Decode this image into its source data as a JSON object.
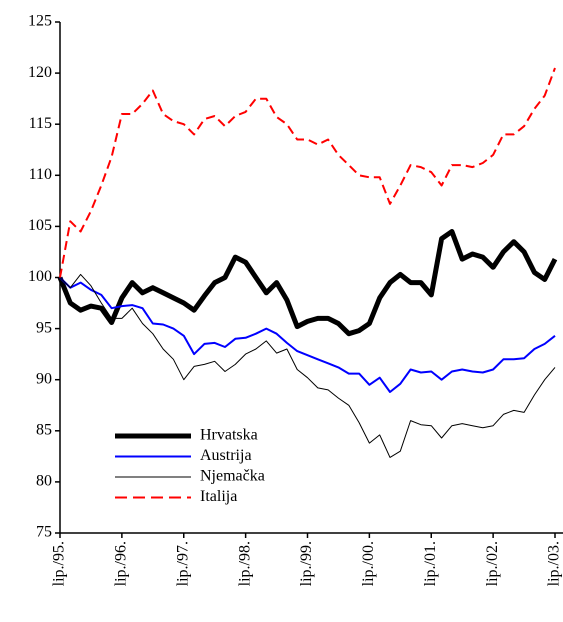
{
  "chart_data": {
    "type": "line",
    "categories": [
      "lip./95.",
      null,
      null,
      null,
      null,
      null,
      "lip./96.",
      null,
      null,
      null,
      null,
      null,
      "lip./97.",
      null,
      null,
      null,
      null,
      null,
      "lip./98.",
      null,
      null,
      null,
      null,
      null,
      "lip./99.",
      null,
      null,
      null,
      null,
      null,
      "lip./00.",
      null,
      null,
      null,
      null,
      null,
      "lip./01.",
      null,
      null,
      null,
      null,
      null,
      "lip./02.",
      null,
      null,
      null,
      null,
      null,
      "lip./03."
    ],
    "series": [
      {
        "name": "Hrvatska",
        "color": "#000000",
        "line_width": 5,
        "dashed": false,
        "values": [
          100,
          97.5,
          96.8,
          97.2,
          97,
          95.6,
          98,
          99.5,
          98.5,
          99,
          98.5,
          98,
          97.5,
          96.8,
          98.2,
          99.5,
          100,
          102,
          101.5,
          100,
          98.5,
          99.5,
          97.8,
          95.2,
          95.7,
          96,
          96,
          95.5,
          94.5,
          94.8,
          95.5,
          98,
          99.5,
          100.3,
          99.5,
          99.5,
          98.3,
          103.8,
          104.5,
          101.8,
          102.3,
          102,
          101,
          102.5,
          103.5,
          102.5,
          100.5,
          99.8,
          101.8
        ]
      },
      {
        "name": "Austrija",
        "color": "#0000ff",
        "line_width": 2,
        "dashed": false,
        "values": [
          100,
          99,
          99.5,
          98.8,
          98.3,
          97,
          97.2,
          97.3,
          97,
          95.5,
          95.4,
          95,
          94.3,
          92.5,
          93.5,
          93.6,
          93.2,
          94,
          94.1,
          94.5,
          95,
          94.5,
          93.6,
          92.8,
          92.4,
          92,
          91.6,
          91.2,
          90.6,
          90.6,
          89.5,
          90.2,
          88.8,
          89.6,
          91,
          90.7,
          90.8,
          90,
          90.8,
          91,
          90.8,
          90.7,
          91,
          92,
          92,
          92.1,
          93,
          93.5,
          94.3
        ]
      },
      {
        "name": "Njemačka",
        "color": "#000000",
        "line_width": 1,
        "dashed": false,
        "values": [
          100,
          99,
          100.3,
          99.2,
          97.5,
          96,
          96,
          97,
          95.5,
          94.5,
          93,
          92,
          90,
          91.3,
          91.5,
          91.8,
          90.8,
          91.5,
          92.5,
          93,
          93.8,
          92.6,
          93,
          91,
          90.2,
          89.2,
          89,
          88.2,
          87.5,
          85.8,
          83.8,
          84.6,
          82.4,
          83,
          86,
          85.6,
          85.5,
          84.3,
          85.5,
          85.7,
          85.5,
          85.3,
          85.5,
          86.6,
          87,
          86.8,
          88.5,
          90,
          91.2
        ]
      },
      {
        "name": "Italija",
        "color": "#ff0000",
        "line_width": 2,
        "dashed": true,
        "values": [
          100,
          105.5,
          104.5,
          106.5,
          109,
          111.8,
          116,
          116,
          117,
          118.3,
          116,
          115.3,
          115,
          114,
          115.5,
          115.8,
          114.8,
          115.8,
          116.2,
          117.5,
          117.5,
          115.7,
          115,
          113.5,
          113.5,
          113,
          113.5,
          112,
          111,
          110,
          109.8,
          109.8,
          107.2,
          109,
          111,
          110.8,
          110.3,
          109,
          111,
          111,
          110.8,
          111.2,
          112,
          114,
          114,
          114.8,
          116.5,
          117.8,
          120.5
        ]
      }
    ],
    "ylim": [
      75,
      125
    ],
    "yticks": [
      75,
      80,
      85,
      90,
      95,
      100,
      105,
      110,
      115,
      120,
      125
    ],
    "legend": "lower left"
  }
}
